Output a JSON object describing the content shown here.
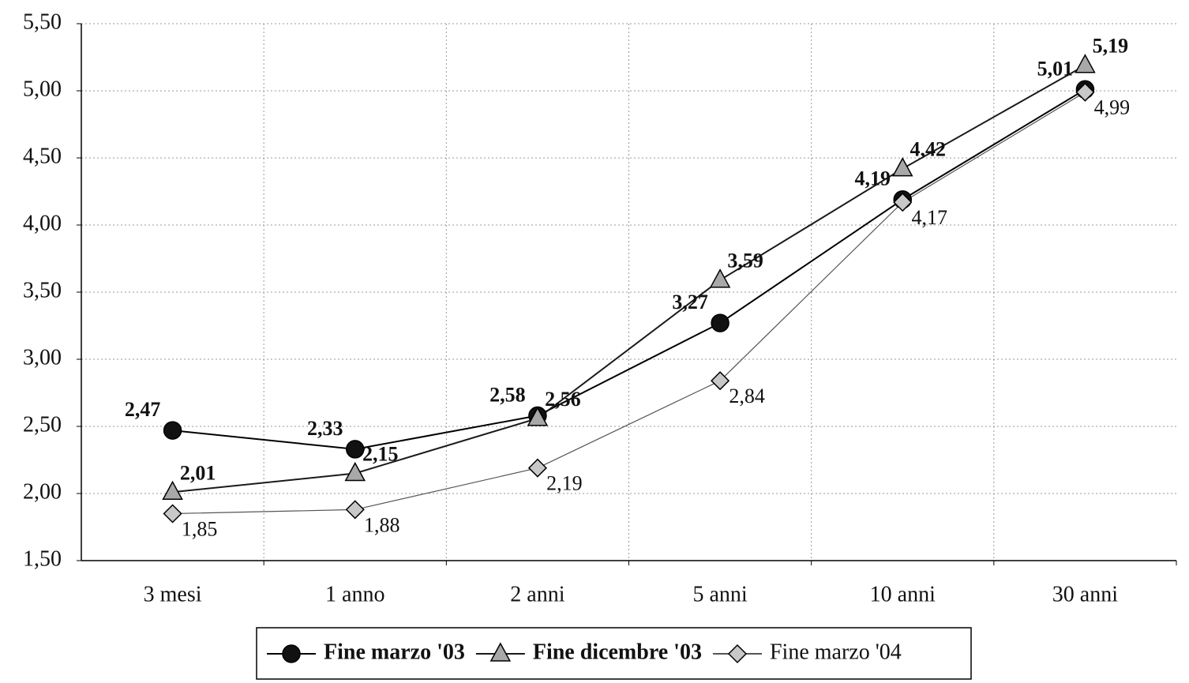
{
  "chart_data": {
    "type": "line",
    "categories": [
      "3 mesi",
      "1 anno",
      "2 anni",
      "5 anni",
      "10 anni",
      "30 anni"
    ],
    "series": [
      {
        "name": "Fine marzo '03",
        "color": "#000000",
        "marker": "circle",
        "marker_fill": "#111111",
        "values": [
          2.47,
          2.33,
          2.58,
          3.27,
          4.19,
          5.01
        ],
        "value_labels": [
          "2,47",
          "2,33",
          "2,58",
          "3,27",
          "4,19",
          "5,01"
        ]
      },
      {
        "name": "Fine dicembre '03",
        "color": "#1a1a1a",
        "marker": "triangle",
        "marker_fill": "#a8a8a8",
        "values": [
          2.01,
          2.15,
          2.56,
          3.59,
          4.42,
          5.19
        ],
        "value_labels": [
          "2,01",
          "2,15",
          "2,56",
          "3,59",
          "4,42",
          "5,19"
        ]
      },
      {
        "name": "Fine marzo '04",
        "color": "#555555",
        "marker": "diamond",
        "marker_fill": "#c8c8c8",
        "values": [
          1.85,
          1.88,
          2.19,
          2.84,
          4.17,
          4.99
        ],
        "value_labels": [
          "1,85",
          "1,88",
          "2,19",
          "2,84",
          "4,17",
          "4,99"
        ]
      }
    ],
    "ylim": [
      1.5,
      5.5
    ],
    "yticks": [
      {
        "value": 1.5,
        "label": "1,50"
      },
      {
        "value": 2,
        "label": "2,00"
      },
      {
        "value": 2.5,
        "label": "2,50"
      },
      {
        "value": 3,
        "label": "3,00"
      },
      {
        "value": 3.5,
        "label": "3,50"
      },
      {
        "value": 4,
        "label": "4,00"
      },
      {
        "value": 4.5,
        "label": "4,50"
      },
      {
        "value": 5,
        "label": "5,00"
      },
      {
        "value": 5.5,
        "label": "5,50"
      }
    ],
    "grid": true
  }
}
